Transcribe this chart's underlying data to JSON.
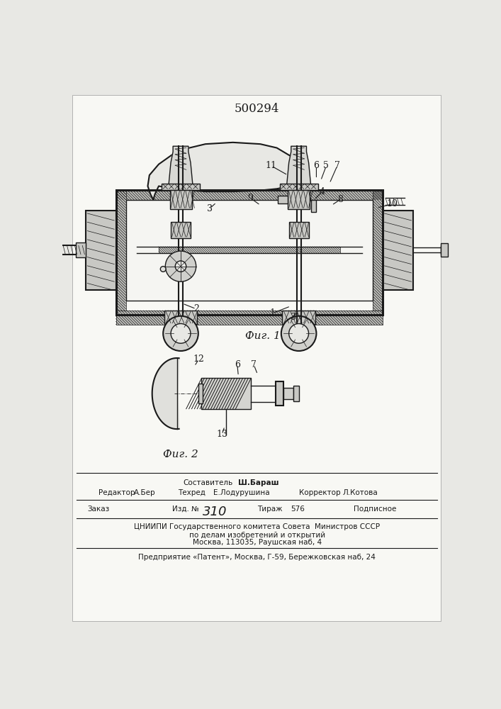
{
  "patent_number": "500294",
  "fig1_caption": "Фиг. 1",
  "fig2_caption": "Фиг. 2",
  "bg_color": "#f2f2ee",
  "line_color": "#1a1a1a",
  "footer": {
    "sostavitel_label": "Составитель",
    "sostavitel_name": "Ш.Бараш",
    "redaktor_label": "Редактор",
    "redaktor_name": "А.Бер",
    "tekhred_label": "Техред",
    "tekhred_name": "Е.Лодурушина",
    "korrektor_label": "Корректор",
    "korrektor_name": "Л.Котова",
    "zakaz_label": "Заказ",
    "izd_label": "Изд. №",
    "izd_number": "310",
    "tirazh_label": "Тираж",
    "tirazh_number": "576",
    "podpisnoe": "Подписное",
    "org_line1": "ЦНИИПИ Государственного комитета Совета  Министров СССР",
    "org_line2": "по делам изобретений и открытий",
    "org_line3": "Москва, 113035, Раушская наб, 4",
    "predpr": "Предприятие «Патент», Москва, Г-59, Бережковская наб, 24"
  }
}
